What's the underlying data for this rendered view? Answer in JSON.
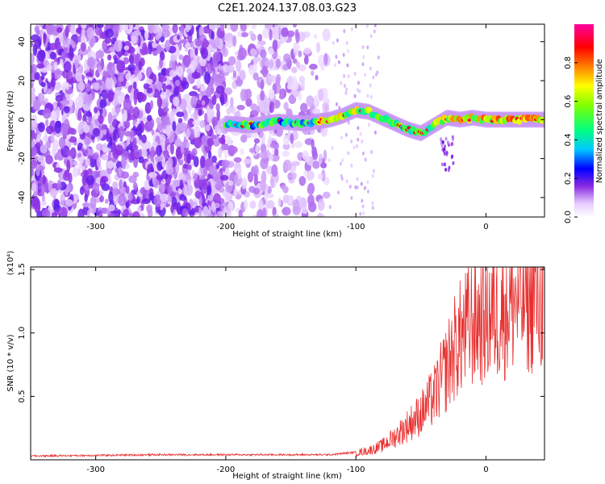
{
  "title": "C2E1.2024.137.08.03.G23",
  "chart_data": [
    {
      "type": "heatmap",
      "xlabel": "Height of straight line (km)",
      "ylabel": "Frequency (Hz)",
      "xlim": [
        -350,
        45
      ],
      "ylim": [
        -50,
        49
      ],
      "x_ticks": [
        -300,
        -200,
        -100,
        0
      ],
      "x_tick_labels": [
        "-300",
        "-200",
        "-100",
        "0"
      ],
      "y_ticks": [
        -40,
        -20,
        0,
        20,
        40
      ],
      "y_tick_labels": [
        "-40",
        "-20",
        "0",
        "20",
        "40"
      ],
      "colorbar": {
        "label": "Normalized spectral amplitude",
        "range": [
          0,
          1
        ],
        "ticks": [
          0,
          0.2,
          0.4,
          0.6,
          0.8
        ],
        "tick_labels": [
          "0.0",
          "0.2",
          "0.4",
          "0.6",
          "0.8"
        ],
        "colormap": "rainbow (white-violet-blue-cyan-green-yellow-red-magenta)"
      },
      "ridge": {
        "x": [
          -200,
          -180,
          -160,
          -140,
          -120,
          -110,
          -100,
          -90,
          -80,
          -70,
          -60,
          -50,
          -40,
          -30,
          -20,
          -10,
          0,
          10,
          20,
          30,
          45
        ],
        "y": [
          -2,
          -3,
          -1,
          -2,
          0,
          2,
          5,
          4,
          1,
          -2,
          -5,
          -7,
          -3,
          1,
          0,
          1,
          0,
          0,
          0,
          0,
          0
        ],
        "peak_amplitude": 0.95
      }
    },
    {
      "type": "line",
      "xlabel": "Height of straight line (km)",
      "ylabel": "SNR (10 * v/v)",
      "y_multiplier_label": "(x10⁴)",
      "xlim": [
        -350,
        45
      ],
      "ylim": [
        0,
        1.52
      ],
      "x_ticks": [
        -300,
        -200,
        -100,
        0
      ],
      "x_tick_labels": [
        "-300",
        "-200",
        "-100",
        "0"
      ],
      "y_ticks": [
        0.5,
        1.0,
        1.5
      ],
      "y_tick_labels": [
        "0.5",
        "1.0",
        "1.5"
      ],
      "series": [
        {
          "color": "#e83030",
          "x": [
            -350,
            -300,
            -250,
            -200,
            -150,
            -120,
            -100,
            -90,
            -80,
            -70,
            -60,
            -50,
            -40,
            -30,
            -25,
            -20,
            -10,
            0,
            10,
            20,
            30,
            45
          ],
          "values": [
            0.03,
            0.035,
            0.04,
            0.04,
            0.04,
            0.04,
            0.06,
            0.08,
            0.12,
            0.2,
            0.3,
            0.4,
            0.55,
            0.8,
            0.95,
            1.05,
            1.2,
            1.25,
            1.3,
            1.38,
            1.42,
            1.45
          ]
        }
      ]
    }
  ]
}
